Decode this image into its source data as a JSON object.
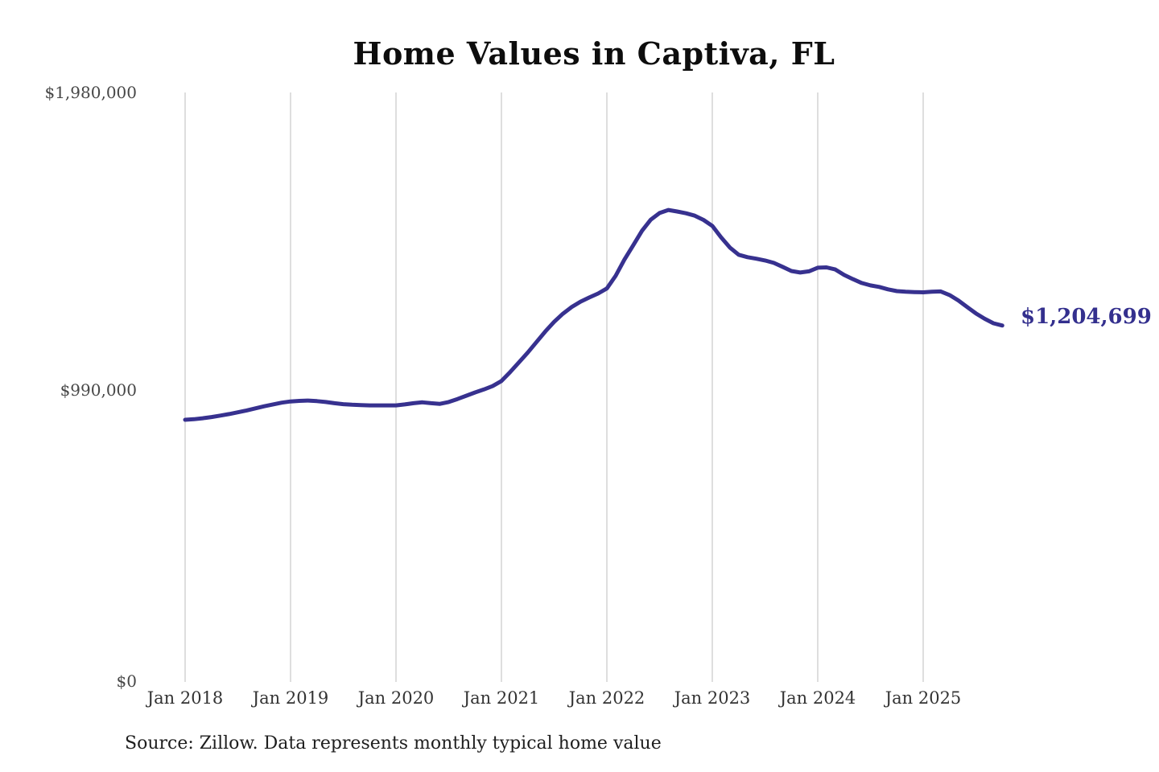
{
  "page": {
    "background_color": "#ffffff"
  },
  "chart_data": {
    "type": "line",
    "title": "Home Values in Captiva, FL",
    "source_note": "Source: Zillow. Data represents monthly typical home value",
    "series_name": "Monthly typical home value",
    "unit": "USD",
    "line_color": "#37318f",
    "gridline_color": "#cccccc",
    "accent_label_color": "#34308e",
    "grid": "vertical-only",
    "legend": "none",
    "latest_value": 1204699,
    "latest_value_label": "$1,204,699",
    "ylim": [
      0,
      1980000
    ],
    "y_ticks": [
      {
        "value": 0,
        "label": "$0"
      },
      {
        "value": 990000,
        "label": "$990,000"
      },
      {
        "value": 1980000,
        "label": "$1,980,000"
      }
    ],
    "x_ticks": [
      "Jan 2018",
      "Jan 2019",
      "Jan 2020",
      "Jan 2021",
      "Jan 2022",
      "Jan 2023",
      "Jan 2024",
      "Jan 2025"
    ],
    "dates": [
      "2018-01",
      "2018-02",
      "2018-03",
      "2018-04",
      "2018-05",
      "2018-06",
      "2018-07",
      "2018-08",
      "2018-09",
      "2018-10",
      "2018-11",
      "2018-12",
      "2019-01",
      "2019-02",
      "2019-03",
      "2019-04",
      "2019-05",
      "2019-06",
      "2019-07",
      "2019-08",
      "2019-09",
      "2019-10",
      "2019-11",
      "2019-12",
      "2020-01",
      "2020-02",
      "2020-03",
      "2020-04",
      "2020-05",
      "2020-06",
      "2020-07",
      "2020-08",
      "2020-09",
      "2020-10",
      "2020-11",
      "2020-12",
      "2021-01",
      "2021-02",
      "2021-03",
      "2021-04",
      "2021-05",
      "2021-06",
      "2021-07",
      "2021-08",
      "2021-09",
      "2021-10",
      "2021-11",
      "2021-12",
      "2022-01",
      "2022-02",
      "2022-03",
      "2022-04",
      "2022-05",
      "2022-06",
      "2022-07",
      "2022-08",
      "2022-09",
      "2022-10",
      "2022-11",
      "2022-12",
      "2023-01",
      "2023-02",
      "2023-03",
      "2023-04",
      "2023-05",
      "2023-06",
      "2023-07",
      "2023-08",
      "2023-09",
      "2023-10",
      "2023-11",
      "2023-12",
      "2024-01",
      "2024-02",
      "2024-03",
      "2024-04",
      "2024-05",
      "2024-06",
      "2024-07",
      "2024-08",
      "2024-09",
      "2024-10",
      "2024-11",
      "2024-12",
      "2025-01",
      "2025-02",
      "2025-03",
      "2025-04",
      "2025-05",
      "2025-06",
      "2025-07",
      "2025-08",
      "2025-09",
      "2025-10"
    ],
    "values": [
      891000,
      893000,
      896000,
      900000,
      905000,
      910000,
      916000,
      922000,
      929000,
      936000,
      942000,
      948000,
      952000,
      954000,
      955000,
      953000,
      950000,
      946000,
      943000,
      941000,
      940000,
      939000,
      939000,
      939000,
      939000,
      942000,
      946000,
      949000,
      946000,
      944000,
      950000,
      960000,
      971000,
      982000,
      992000,
      1003000,
      1020000,
      1050000,
      1082000,
      1115000,
      1150000,
      1185000,
      1217000,
      1244000,
      1266000,
      1284000,
      1298000,
      1311000,
      1328000,
      1370000,
      1424000,
      1472000,
      1520000,
      1557000,
      1579000,
      1589000,
      1584000,
      1578000,
      1570000,
      1556000,
      1536000,
      1498000,
      1464000,
      1440000,
      1432000,
      1427000,
      1421000,
      1413000,
      1400000,
      1386000,
      1381000,
      1385000,
      1397000,
      1398000,
      1391000,
      1373000,
      1359000,
      1346000,
      1338000,
      1333000,
      1325000,
      1319000,
      1317000,
      1316000,
      1315000,
      1317000,
      1318000,
      1306000,
      1288000,
      1266000,
      1245000,
      1227000,
      1212000,
      1204699
    ]
  }
}
